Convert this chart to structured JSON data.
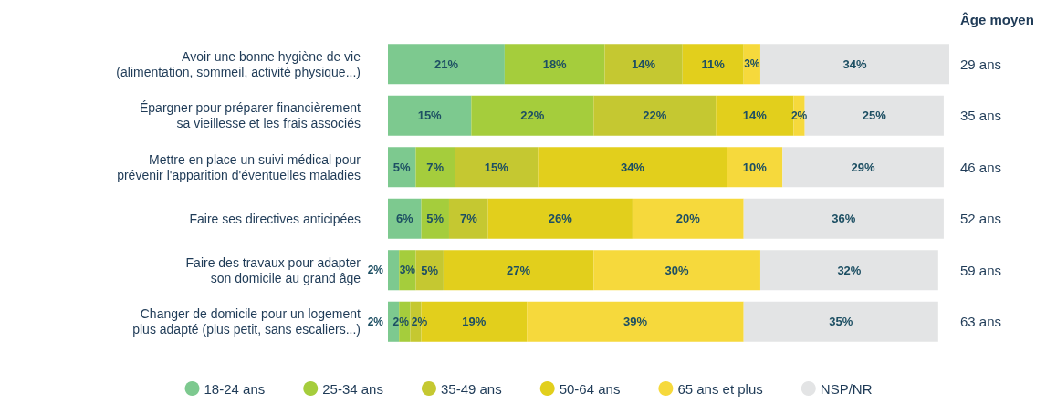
{
  "chart_data": {
    "type": "bar",
    "orientation": "horizontal",
    "stacked": true,
    "grid": false,
    "legend": "bottom",
    "categories": [
      "Avoir une bonne hygiène de vie\n(alimentation, sommeil, activité physique...)",
      "Épargner pour préparer financièrement\nsa vieillesse et les frais associés",
      "Mettre en place un suivi médical pour\nprévenir l'apparition d'éventuelles maladies",
      "Faire ses directives anticipées",
      "Faire des travaux pour adapter\nson domicile au grand âge",
      "Changer de domicile pour un logement\nplus adapté (plus petit, sans escaliers...)"
    ],
    "series": [
      {
        "name": "18-24 ans",
        "color": "#7dc98f",
        "values": [
          21,
          15,
          5,
          6,
          2,
          2
        ],
        "value_labels": [
          "21%",
          "15%",
          "5%",
          "6%",
          "2%",
          "2%"
        ]
      },
      {
        "name": "25-34 ans",
        "color": "#a5cd3c",
        "values": [
          18,
          22,
          7,
          5,
          3,
          2
        ],
        "value_labels": [
          "18%",
          "22%",
          "7%",
          "5%",
          "3%",
          "2%"
        ]
      },
      {
        "name": "35-49 ans",
        "color": "#c5c831",
        "values": [
          14,
          22,
          15,
          7,
          5,
          2
        ],
        "value_labels": [
          "14%",
          "22%",
          "15%",
          "7%",
          "5%",
          "2%"
        ]
      },
      {
        "name": "50-64 ans",
        "color": "#e2cf1c",
        "values": [
          11,
          14,
          34,
          26,
          27,
          19
        ],
        "value_labels": [
          "11%",
          "14%",
          "34%",
          "26%",
          "27%",
          "19%"
        ]
      },
      {
        "name": "65 ans et plus",
        "color": "#f6d93c",
        "values": [
          3,
          2,
          10,
          20,
          30,
          39
        ],
        "value_labels": [
          "3%",
          "2%",
          "10%",
          "20%",
          "30%",
          "39%"
        ]
      },
      {
        "name": "NSP/NR",
        "color": "#e3e4e5",
        "values": [
          34,
          25,
          29,
          36,
          32,
          35
        ],
        "value_labels": [
          "34%",
          "25%",
          "29%",
          "36%",
          "32%",
          "35%"
        ]
      }
    ],
    "annotations": [
      "Âge moyen",
      "29 ans",
      "35 ans",
      "46 ans",
      "52 ans",
      "59 ans",
      "63 ans"
    ]
  }
}
